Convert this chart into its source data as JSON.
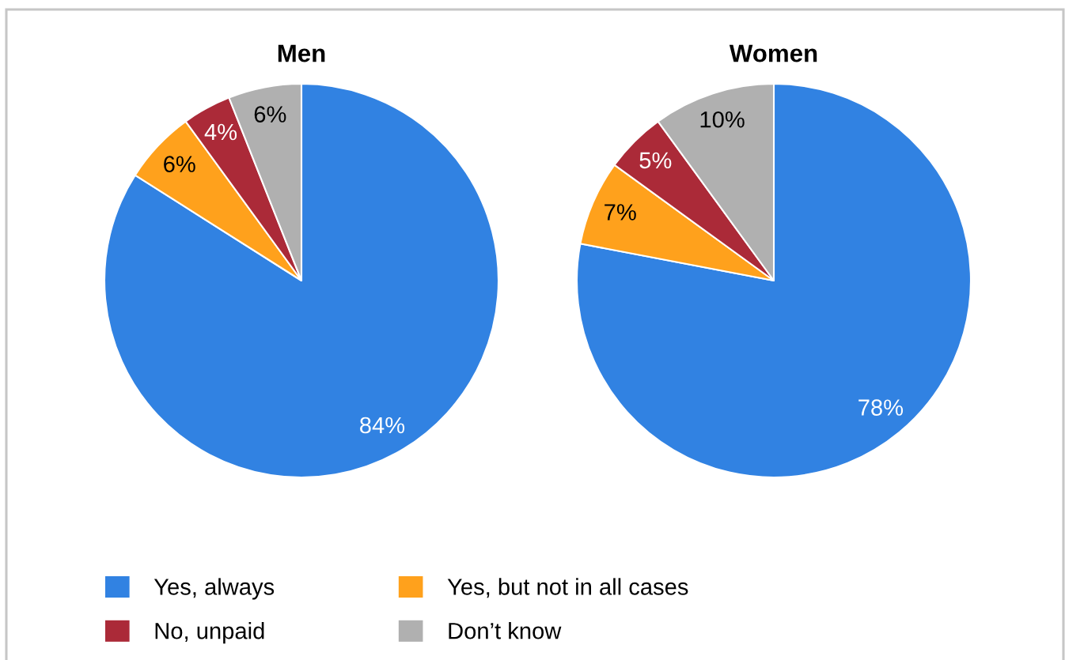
{
  "chart_data": {
    "type": "pie",
    "categories": [
      "Yes, always",
      "Yes, but not in all cases",
      "No, unpaid",
      "Don’t know"
    ],
    "colors": [
      "#3182e2",
      "#ffa11c",
      "#ab2a38",
      "#b0b0b0"
    ],
    "legend": "bottom",
    "series": [
      {
        "name": "Men",
        "values": [
          84,
          6,
          4,
          6
        ],
        "value_labels": [
          "84%",
          "6%",
          "4%",
          "6%"
        ]
      },
      {
        "name": "Women",
        "values": [
          78,
          7,
          5,
          10
        ],
        "value_labels": [
          "78%",
          "7%",
          "5%",
          "10%"
        ]
      }
    ]
  }
}
